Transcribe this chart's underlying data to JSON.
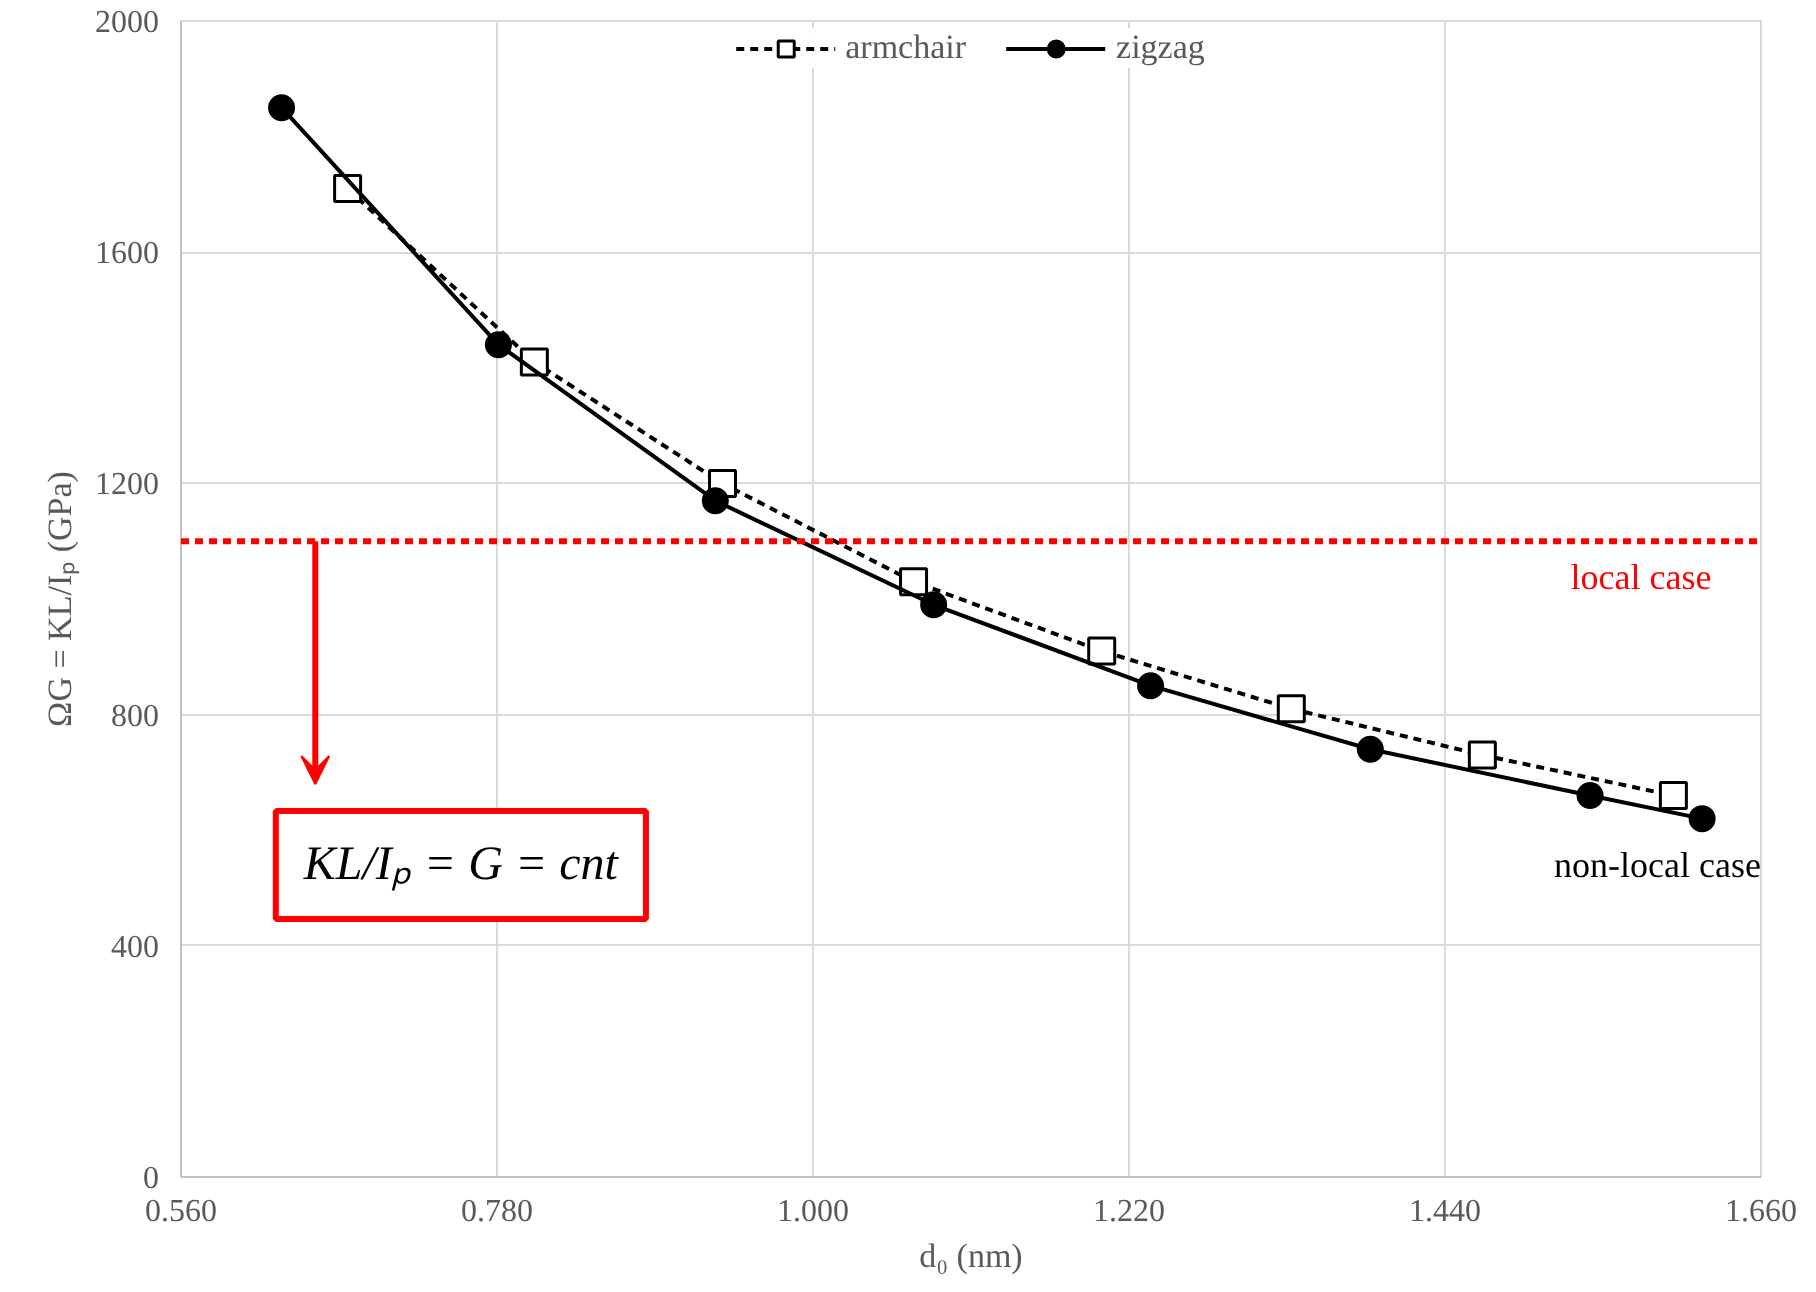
{
  "chart_data": {
    "type": "line",
    "xlabel": "d₀ (nm)",
    "ylabel": "ΩG = KL/Iₚ (GPa)",
    "xlim": [
      0.56,
      1.66
    ],
    "xticks": [
      {
        "value": 0.56,
        "label": "0.560"
      },
      {
        "value": 0.78,
        "label": "0.780"
      },
      {
        "value": 1.0,
        "label": "1.000"
      },
      {
        "value": 1.22,
        "label": "1.220"
      },
      {
        "value": 1.44,
        "label": "1.440"
      },
      {
        "value": 1.66,
        "label": "1.660"
      }
    ],
    "ylim": [
      0,
      2000
    ],
    "yticks": [
      0,
      400,
      800,
      1200,
      1600,
      2000
    ],
    "grid": true,
    "legend": "top",
    "series": [
      {
        "name": "armchair",
        "color": "#000000",
        "marker": "square",
        "line_style": "dashed",
        "x": [
          0.676,
          0.806,
          0.937,
          1.07,
          1.201,
          1.333,
          1.466,
          1.599
        ],
        "values": [
          1710,
          1410,
          1200,
          1030,
          910,
          810,
          730,
          660
        ]
      },
      {
        "name": "zigzag",
        "color": "#000000",
        "marker": "circle",
        "line_style": "solid",
        "x": [
          0.63,
          0.781,
          0.932,
          1.084,
          1.235,
          1.388,
          1.541,
          1.619
        ],
        "values": [
          1850,
          1440,
          1170,
          990,
          850,
          740,
          660,
          620
        ]
      }
    ],
    "ref_lines": [
      {
        "axis": "y",
        "value": 1100,
        "label": "local case",
        "color": "#ff0000",
        "line_style": "dashed"
      }
    ],
    "annotations": [
      "non-local case",
      "KL/Iₚ = G = cnt"
    ]
  }
}
